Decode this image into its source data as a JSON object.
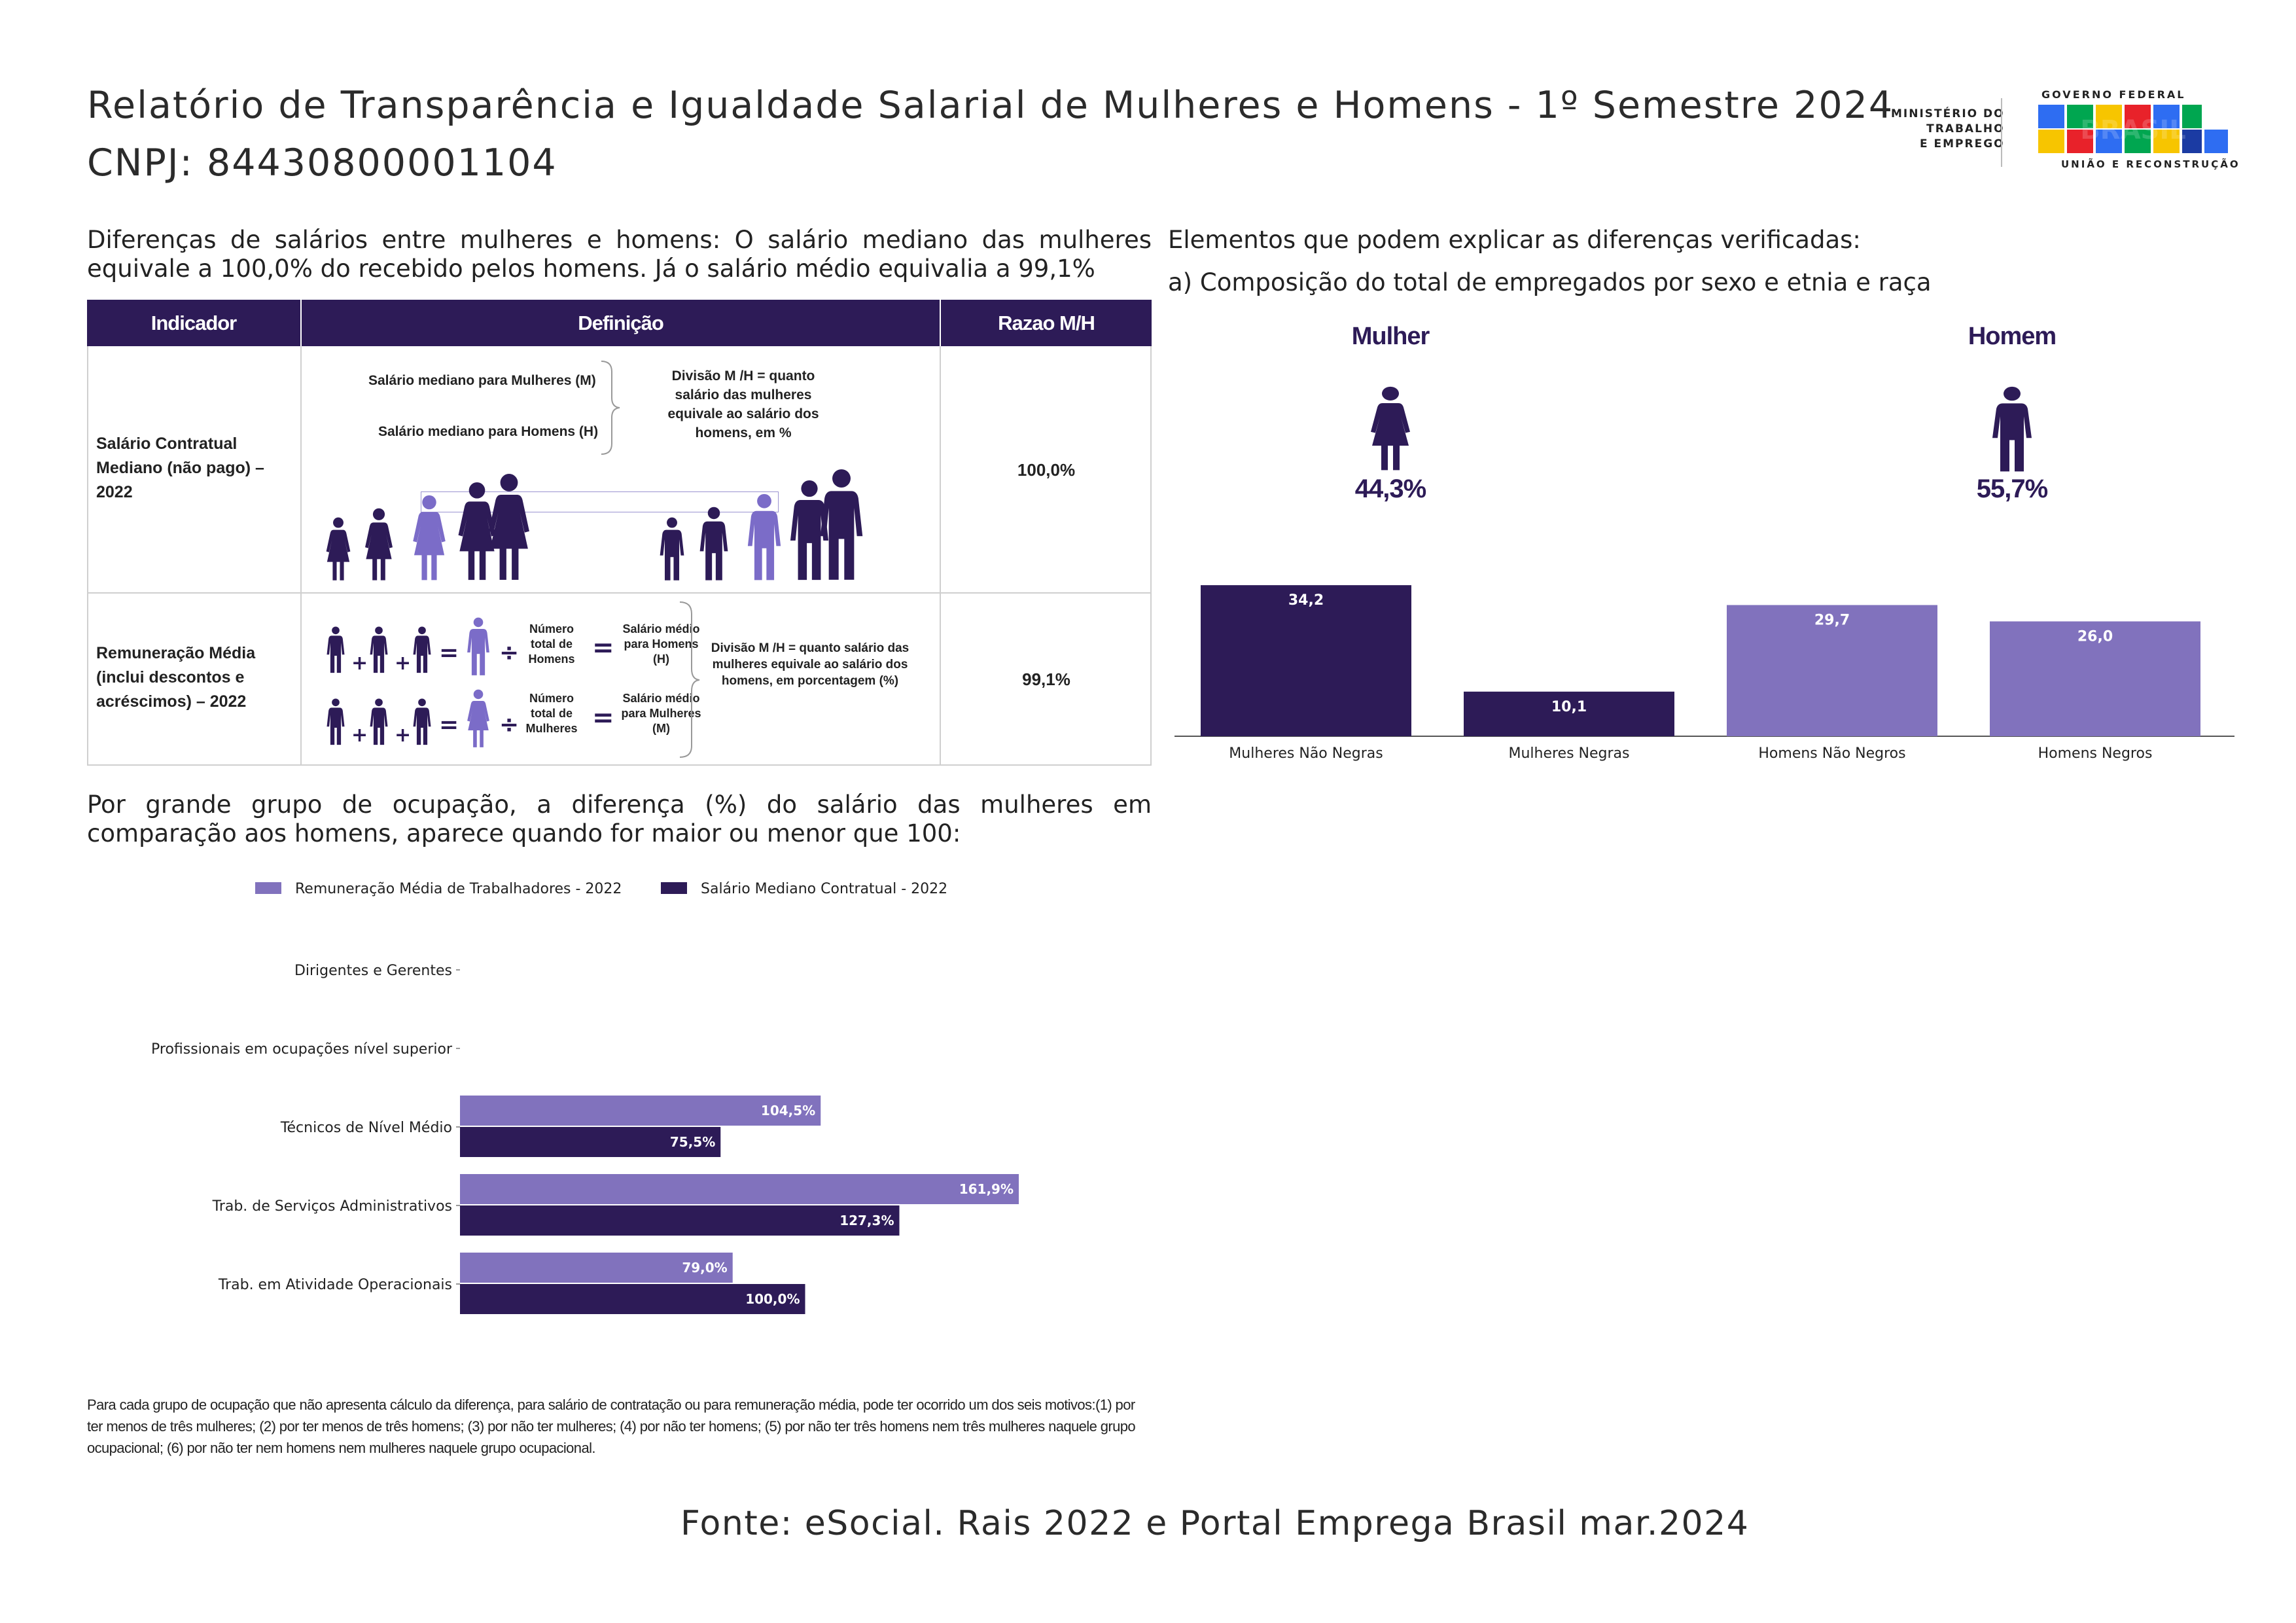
{
  "header": {
    "title": "Relatório de Transparência e Igualdade Salarial de Mulheres e Homens - 1º Semestre 2024",
    "cnpj": "CNPJ: 84430800001104",
    "ministry_logo": [
      "MINISTÉRIO DO",
      "TRABALHO",
      "E EMPREGO"
    ],
    "gov_logo_top": "GOVERNO FEDERAL",
    "gov_logo_word": "BRASIL",
    "gov_logo_bottom": "UNIÃO E RECONSTRUÇÃO"
  },
  "intro_text": "Diferenças de salários entre mulheres e homens: O salário mediano das mulheres equivale a 100,0% do recebido pelos homens. Já o salário médio equivalia a 99,1%",
  "table": {
    "headers": [
      "Indicador",
      "Definição",
      "Razao M/H"
    ],
    "row1": {
      "indicator": "Salário Contratual Mediano (não pago) – 2022",
      "def_line1": "Salário mediano para Mulheres (M)",
      "def_line2": "Salário mediano para Homens (H)",
      "def_note": "Divisão M /H = quanto salário das mulheres equivale ao salário dos homens, em %",
      "ratio": "100,0%"
    },
    "row2": {
      "indicator": "Remuneração Média (inclui descontos e acréscimos) – 2022",
      "total_homens": "Número total de Homens",
      "total_mulheres": "Número total de Mulheres",
      "medio_h": "Salário médio para Homens (H)",
      "medio_m": "Salário médio para Mulheres (M)",
      "def_note": "Divisão M /H = quanto salário das mulheres equivale ao salário dos homens, em porcentagem (%)",
      "ratio": "99,1%"
    }
  },
  "occupation_intro": "Por grande grupo de ocupação, a diferença (%) do salário das mulheres em comparação aos homens, aparece quando for maior ou menor que 100:",
  "composition": {
    "heading": "Elementos que podem explicar as diferenças verificadas:",
    "subheading": "a) Composição do total de empregados por sexo e etnia e raça",
    "mulher_label": "Mulher",
    "mulher_pct": "44,3%",
    "homem_label": "Homem",
    "homem_pct": "55,7%"
  },
  "colors": {
    "dark": "#2d1b57",
    "light": "#8172bd",
    "light_icon": "#7b6cc8"
  },
  "chart_data": [
    {
      "type": "bar",
      "categories": [
        "Mulheres Não Negras",
        "Mulheres Negras",
        "Homens Não Negros",
        "Homens Negros"
      ],
      "values": [
        34.2,
        10.1,
        29.7,
        26.0
      ],
      "value_labels": [
        "34,2",
        "10,1",
        "29,7",
        "26,0"
      ],
      "colors": [
        "#2d1b57",
        "#2d1b57",
        "#8172bd",
        "#8172bd"
      ],
      "title": "",
      "xlabel": "",
      "ylabel": "",
      "ylim": [
        0,
        36
      ]
    },
    {
      "type": "bar",
      "orientation": "horizontal",
      "categories": [
        "Dirigentes e Gerentes",
        "Profissionais em ocupações nível superior",
        "Técnicos de Nível Médio",
        "Trab. de Serviços Administrativos",
        "Trab. em Atividade Operacionais"
      ],
      "series": [
        {
          "name": "Remuneração Média de Trabalhadores - 2022",
          "color": "#8172bd",
          "values": [
            null,
            null,
            104.5,
            161.9,
            79.0
          ],
          "labels": [
            "",
            "",
            "104,5%",
            "161,9%",
            "79,0%"
          ]
        },
        {
          "name": "Salário Mediano Contratual - 2022",
          "color": "#2d1b57",
          "values": [
            null,
            null,
            75.5,
            127.3,
            100.0
          ],
          "labels": [
            "",
            "",
            "75,5%",
            "127,3%",
            "100,0%"
          ]
        }
      ],
      "xlim": [
        0,
        175
      ],
      "legend": "top"
    }
  ],
  "note": "Para cada grupo de ocupação que não apresenta cálculo da diferença, para salário de contratação ou para remuneração média, pode ter ocorrido um dos seis motivos:(1) por ter menos de três mulheres; (2) por ter menos de três homens; (3) por não ter mulheres; (4) por não ter homens; (5) por não ter três homens nem três mulheres naquele grupo ocupacional; (6) por não ter nem homens nem mulheres naquele grupo ocupacional.",
  "source": "Fonte: eSocial. Rais 2022 e Portal Emprega Brasil mar.2024"
}
